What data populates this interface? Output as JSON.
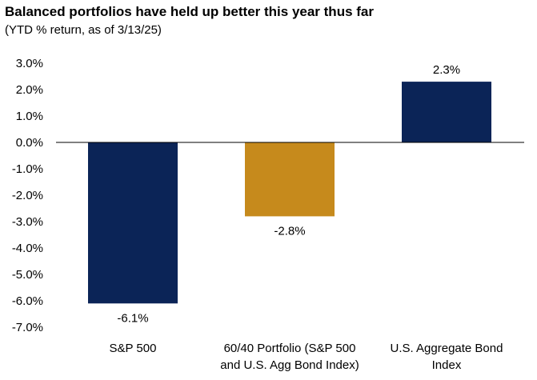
{
  "chart_data": {
    "type": "bar",
    "title": "Balanced portfolios have held up better this year thus far",
    "subtitle": "(YTD % return, as of 3/13/25)",
    "categories": [
      [
        "S&P 500"
      ],
      [
        "60/40 Portfolio (S&P 500",
        "and U.S. Agg Bond Index)"
      ],
      [
        "U.S. Aggregate Bond",
        "Index"
      ]
    ],
    "values": [
      -6.1,
      -2.8,
      2.3
    ],
    "data_labels": [
      "-6.1%",
      "-2.8%",
      "2.3%"
    ],
    "colors": [
      "#0b2457",
      "#c68a1c",
      "#0b2457"
    ],
    "ylim": [
      -7.0,
      3.0
    ],
    "yticks": [
      3.0,
      2.0,
      1.0,
      0.0,
      -1.0,
      -2.0,
      -3.0,
      -4.0,
      -5.0,
      -6.0,
      -7.0
    ],
    "ytick_labels": [
      "3.0%",
      "2.0%",
      "1.0%",
      "0.0%",
      "-1.0%",
      "-2.0%",
      "-3.0%",
      "-4.0%",
      "-5.0%",
      "-6.0%",
      "-7.0%"
    ],
    "xlabel": "",
    "ylabel": "",
    "grid": false,
    "legend": false
  }
}
